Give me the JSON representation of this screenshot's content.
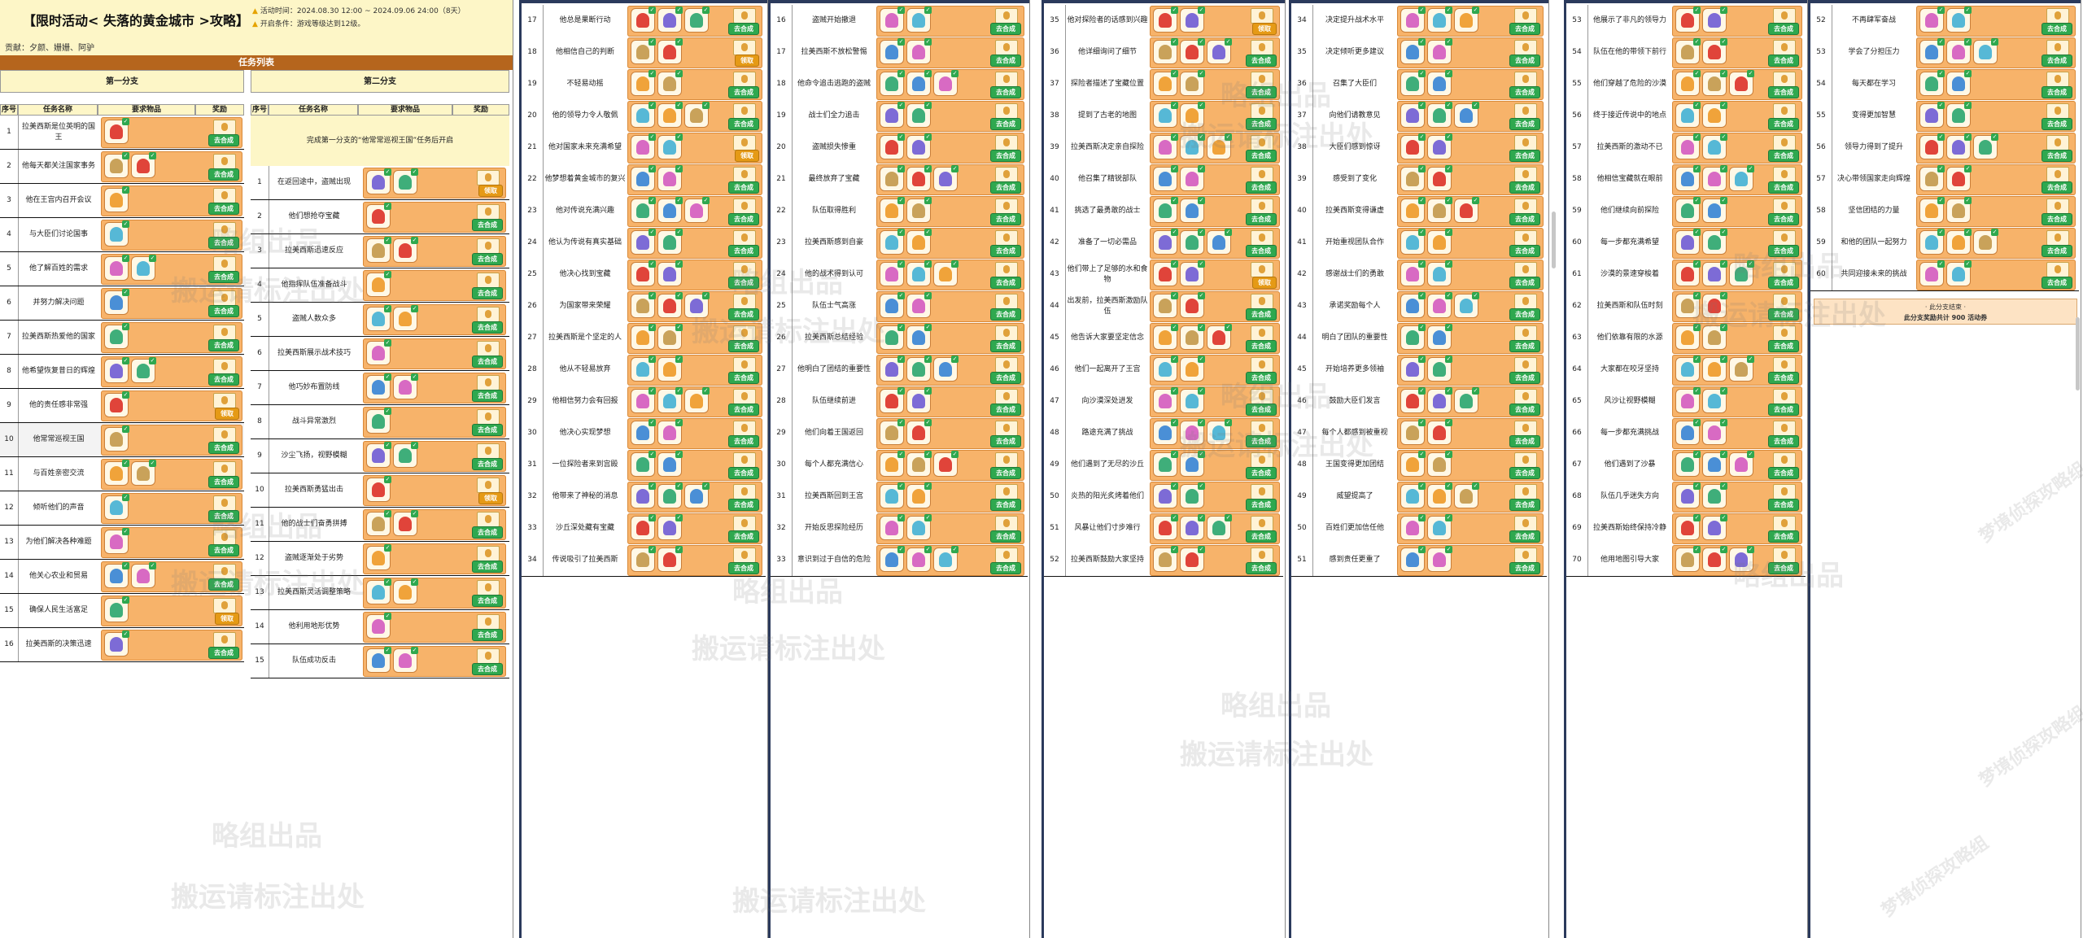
{
  "header": {
    "title": "【限时活动< 失落的黄金城市 >攻略】",
    "activity_time": "活动时间：2024.08.30 12:00 ~ 2024.09.06 24:00（8天）",
    "unlock_cond": "开启条件：游戏等级达到12级。",
    "contributors": "贡献：夕颜、姗姗、阿驴",
    "banner": "任务列表"
  },
  "branches": {
    "first": "第一分支",
    "second": "第二分支",
    "col_no": "序号",
    "col_name": "任务名称",
    "col_items": "要求物品",
    "col_reward": "奖励",
    "unlock_note": "完成第一分支的“他常常巡视王国”任务后开启"
  },
  "buttons": {
    "go": "去合成",
    "claim": "领取"
  },
  "colors": {
    "card": "#f7b36a",
    "go": "#2fa84f",
    "claim": "#e59a16",
    "header": "#fdf6c7",
    "banner": "#b5651d"
  },
  "footer": {
    "line1": "· 此分支结束 ·",
    "line2": "此分支奖励共计 900 活动券"
  },
  "watermarks": [
    "略组出品",
    "搬运请标注出处",
    "梦境侦探攻略组"
  ],
  "branch1_rows": [
    {
      "no": "1",
      "name": "拉美西斯是位英明的国王",
      "btn": "go"
    },
    {
      "no": "2",
      "name": "他每天都关注国家事务",
      "btn": "go"
    },
    {
      "no": "3",
      "name": "他在王宫内召开会议",
      "btn": "go"
    },
    {
      "no": "4",
      "name": "与大臣们讨论国事",
      "btn": "go"
    },
    {
      "no": "5",
      "name": "他了解百姓的需求",
      "btn": "go"
    },
    {
      "no": "6",
      "name": "并努力解决问题",
      "btn": "go"
    },
    {
      "no": "7",
      "name": "拉美西斯热爱他的国家",
      "btn": "go"
    },
    {
      "no": "8",
      "name": "他希望恢复昔日的辉煌",
      "btn": "go"
    },
    {
      "no": "9",
      "name": "他的责任感非常强",
      "btn": "claim"
    },
    {
      "no": "10",
      "name": "他常常巡视王国",
      "btn": "go"
    },
    {
      "no": "11",
      "name": "与百姓亲密交流",
      "btn": "go"
    },
    {
      "no": "12",
      "name": "倾听他们的声音",
      "btn": "go"
    },
    {
      "no": "13",
      "name": "为他们解决各种难题",
      "btn": "go"
    },
    {
      "no": "14",
      "name": "他关心农业和贸易",
      "btn": "go"
    },
    {
      "no": "15",
      "name": "确保人民生活富足",
      "btn": "claim"
    },
    {
      "no": "16",
      "name": "拉美西斯的决策迅速",
      "btn": "go"
    }
  ],
  "branch2_rows": [
    {
      "no": "1",
      "name": "在返回途中，盗贼出现",
      "btn": "claim"
    },
    {
      "no": "2",
      "name": "他们想抢夺宝藏",
      "btn": "go"
    },
    {
      "no": "3",
      "name": "拉美西斯迅速反应",
      "btn": "go"
    },
    {
      "no": "4",
      "name": "他指挥队伍准备战斗",
      "btn": "go"
    },
    {
      "no": "5",
      "name": "盗贼人数众多",
      "btn": "go"
    },
    {
      "no": "6",
      "name": "拉美西斯展示战术技巧",
      "btn": "go"
    },
    {
      "no": "7",
      "name": "他巧妙布置防线",
      "btn": "go"
    },
    {
      "no": "8",
      "name": "战斗异常激烈",
      "btn": "go"
    },
    {
      "no": "9",
      "name": "沙尘飞扬，视野模糊",
      "btn": "go"
    },
    {
      "no": "10",
      "name": "拉美西斯勇猛出击",
      "btn": "claim"
    },
    {
      "no": "11",
      "name": "他的战士们奋勇拼搏",
      "btn": "go"
    },
    {
      "no": "12",
      "name": "盗贼逐渐处于劣势",
      "btn": "go"
    },
    {
      "no": "13",
      "name": "拉美西斯灵活调整策略",
      "btn": "go"
    },
    {
      "no": "14",
      "name": "他利用地形优势",
      "btn": "go"
    },
    {
      "no": "15",
      "name": "队伍成功反击",
      "btn": "go"
    }
  ],
  "panels": [
    {
      "rows": [
        {
          "no": "17",
          "name": "他总是果断行动",
          "btn": "go"
        },
        {
          "no": "18",
          "name": "他相信自己的判断",
          "btn": "claim"
        },
        {
          "no": "19",
          "name": "不轻易动摇",
          "btn": "go"
        },
        {
          "no": "20",
          "name": "他的领导力令人敬佩",
          "btn": "go"
        },
        {
          "no": "21",
          "name": "他对国家未来充满希望",
          "btn": "claim"
        },
        {
          "no": "22",
          "name": "他梦想着黄金城市的复兴",
          "btn": "go"
        },
        {
          "no": "23",
          "name": "他对传说充满兴趣",
          "btn": "go"
        },
        {
          "no": "24",
          "name": "他认为传说有真实基础",
          "btn": "go"
        },
        {
          "no": "25",
          "name": "他决心找到宝藏",
          "btn": "go"
        },
        {
          "no": "26",
          "name": "为国家带来荣耀",
          "btn": "go"
        },
        {
          "no": "27",
          "name": "拉美西斯是个坚定的人",
          "btn": "go"
        },
        {
          "no": "28",
          "name": "他从不轻易放弃",
          "btn": "go"
        },
        {
          "no": "29",
          "name": "他相信努力会有回报",
          "btn": "go"
        },
        {
          "no": "30",
          "name": "他决心实现梦想",
          "btn": "go"
        },
        {
          "no": "31",
          "name": "一位探险者来到宫殿",
          "btn": "go"
        },
        {
          "no": "32",
          "name": "他带来了神秘的消息",
          "btn": "go"
        },
        {
          "no": "33",
          "name": "沙丘深处藏有宝藏",
          "btn": "go"
        },
        {
          "no": "34",
          "name": "传说吸引了拉美西斯",
          "btn": "go"
        }
      ]
    },
    {
      "rows": [
        {
          "no": "16",
          "name": "盗贼开始撤退",
          "btn": "go"
        },
        {
          "no": "17",
          "name": "拉美西斯不放松警惕",
          "btn": "go"
        },
        {
          "no": "18",
          "name": "他命令追击逃跑的盗贼",
          "btn": "go"
        },
        {
          "no": "19",
          "name": "战士们全力追击",
          "btn": "go"
        },
        {
          "no": "20",
          "name": "盗贼损失惨重",
          "btn": "go"
        },
        {
          "no": "21",
          "name": "最终放弃了宝藏",
          "btn": "go"
        },
        {
          "no": "22",
          "name": "队伍取得胜利",
          "btn": "go"
        },
        {
          "no": "23",
          "name": "拉美西斯感到自豪",
          "btn": "go"
        },
        {
          "no": "24",
          "name": "他的战术得到认可",
          "btn": "go"
        },
        {
          "no": "25",
          "name": "队伍士气高涨",
          "btn": "go"
        },
        {
          "no": "26",
          "name": "拉美西斯总结经验",
          "btn": "go"
        },
        {
          "no": "27",
          "name": "他明白了团结的重要性",
          "btn": "go"
        },
        {
          "no": "28",
          "name": "队伍继续前进",
          "btn": "go"
        },
        {
          "no": "29",
          "name": "他们向着王国返回",
          "btn": "go"
        },
        {
          "no": "30",
          "name": "每个人都充满信心",
          "btn": "go"
        },
        {
          "no": "31",
          "name": "拉美西斯回到王宫",
          "btn": "go"
        },
        {
          "no": "32",
          "name": "开始反思探险经历",
          "btn": "go"
        },
        {
          "no": "33",
          "name": "意识到过于自信的危险",
          "btn": "go"
        }
      ]
    },
    {
      "rows": [
        {
          "no": "35",
          "name": "他对探险者的话感到兴趣",
          "btn": "claim"
        },
        {
          "no": "36",
          "name": "他详细询问了细节",
          "btn": "go"
        },
        {
          "no": "37",
          "name": "探险者描述了宝藏位置",
          "btn": "go"
        },
        {
          "no": "38",
          "name": "提到了古老的地图",
          "btn": "go"
        },
        {
          "no": "39",
          "name": "拉美西斯决定亲自探险",
          "btn": "go"
        },
        {
          "no": "40",
          "name": "他召集了精锐部队",
          "btn": "go"
        },
        {
          "no": "41",
          "name": "挑选了最勇敢的战士",
          "btn": "go"
        },
        {
          "no": "42",
          "name": "准备了一切必需品",
          "btn": "go"
        },
        {
          "no": "43",
          "name": "他们带上了足够的水和食物",
          "btn": "claim"
        },
        {
          "no": "44",
          "name": "出发前，拉美西斯激励队伍",
          "btn": "go"
        },
        {
          "no": "45",
          "name": "他告诉大家要坚定信念",
          "btn": "go"
        },
        {
          "no": "46",
          "name": "他们一起离开了王宫",
          "btn": "go"
        },
        {
          "no": "47",
          "name": "向沙漠深处进发",
          "btn": "go"
        },
        {
          "no": "48",
          "name": "路途充满了挑战",
          "btn": "go"
        },
        {
          "no": "49",
          "name": "他们遇到了无尽的沙丘",
          "btn": "go"
        },
        {
          "no": "50",
          "name": "炎热的阳光炙烤着他们",
          "btn": "go"
        },
        {
          "no": "51",
          "name": "风暴让他们寸步难行",
          "btn": "go"
        },
        {
          "no": "52",
          "name": "拉美西斯鼓励大家坚持",
          "btn": "go"
        }
      ]
    },
    {
      "rows": [
        {
          "no": "34",
          "name": "决定提升战术水平",
          "btn": "go"
        },
        {
          "no": "35",
          "name": "决定倾听更多建议",
          "btn": "go"
        },
        {
          "no": "36",
          "name": "召集了大臣们",
          "btn": "go"
        },
        {
          "no": "37",
          "name": "向他们请教意见",
          "btn": "go"
        },
        {
          "no": "38",
          "name": "大臣们感到惊讶",
          "btn": "go"
        },
        {
          "no": "39",
          "name": "感受到了变化",
          "btn": "go"
        },
        {
          "no": "40",
          "name": "拉美西斯变得谦虚",
          "btn": "go"
        },
        {
          "no": "41",
          "name": "开始重视团队合作",
          "btn": "go"
        },
        {
          "no": "42",
          "name": "感谢战士们的勇敢",
          "btn": "go"
        },
        {
          "no": "43",
          "name": "承诺奖励每个人",
          "btn": "go"
        },
        {
          "no": "44",
          "name": "明白了团队的重要性",
          "btn": "go"
        },
        {
          "no": "45",
          "name": "开始培养更多领袖",
          "btn": "go"
        },
        {
          "no": "46",
          "name": "鼓励大臣们发言",
          "btn": "go"
        },
        {
          "no": "47",
          "name": "每个人都感到被重视",
          "btn": "go"
        },
        {
          "no": "48",
          "name": "王国变得更加团结",
          "btn": "go"
        },
        {
          "no": "49",
          "name": "威望提高了",
          "btn": "go"
        },
        {
          "no": "50",
          "name": "百姓们更加信任他",
          "btn": "go"
        },
        {
          "no": "51",
          "name": "感到责任更重了",
          "btn": "go"
        }
      ]
    },
    {
      "rows": [
        {
          "no": "53",
          "name": "他展示了非凡的领导力",
          "btn": "go"
        },
        {
          "no": "54",
          "name": "队伍在他的带领下前行",
          "btn": "go"
        },
        {
          "no": "55",
          "name": "他们穿越了危险的沙漠",
          "btn": "go"
        },
        {
          "no": "56",
          "name": "终于接近传说中的地点",
          "btn": "go"
        },
        {
          "no": "57",
          "name": "拉美西斯的激动不已",
          "btn": "go"
        },
        {
          "no": "58",
          "name": "他相信宝藏就在眼前",
          "btn": "go"
        },
        {
          "no": "59",
          "name": "他们继续向前探险",
          "btn": "go"
        },
        {
          "no": "60",
          "name": "每一步都充满希望",
          "btn": "go"
        },
        {
          "no": "61",
          "name": "沙漠的景速穿梭着",
          "btn": "go"
        },
        {
          "no": "62",
          "name": "拉美西斯和队伍时刻",
          "btn": "go"
        },
        {
          "no": "63",
          "name": "他们依靠有限的水源",
          "btn": "go"
        },
        {
          "no": "64",
          "name": "大家都在咬牙坚持",
          "btn": "go"
        },
        {
          "no": "65",
          "name": "风沙让视野模糊",
          "btn": "go"
        },
        {
          "no": "66",
          "name": "每一步都充满挑战",
          "btn": "go"
        },
        {
          "no": "67",
          "name": "他们遇到了沙暴",
          "btn": "go"
        },
        {
          "no": "68",
          "name": "队伍几乎迷失方向",
          "btn": "go"
        },
        {
          "no": "69",
          "name": "拉美西斯始终保持冷静",
          "btn": "go"
        },
        {
          "no": "70",
          "name": "他用地图引导大家",
          "btn": "go"
        }
      ]
    },
    {
      "rows": [
        {
          "no": "52",
          "name": "不再肆军奋战",
          "btn": "go"
        },
        {
          "no": "53",
          "name": "学会了分担压力",
          "btn": "go"
        },
        {
          "no": "54",
          "name": "每天都在学习",
          "btn": "go"
        },
        {
          "no": "55",
          "name": "变得更加智慧",
          "btn": "go"
        },
        {
          "no": "56",
          "name": "领导力得到了提升",
          "btn": "go"
        },
        {
          "no": "57",
          "name": "决心带领国家走向辉煌",
          "btn": "go"
        },
        {
          "no": "58",
          "name": "坚信团结的力量",
          "btn": "go"
        },
        {
          "no": "59",
          "name": "和他的团队一起努力",
          "btn": "go"
        },
        {
          "no": "60",
          "name": "共同迎接未来的挑战",
          "btn": "go"
        }
      ]
    }
  ]
}
